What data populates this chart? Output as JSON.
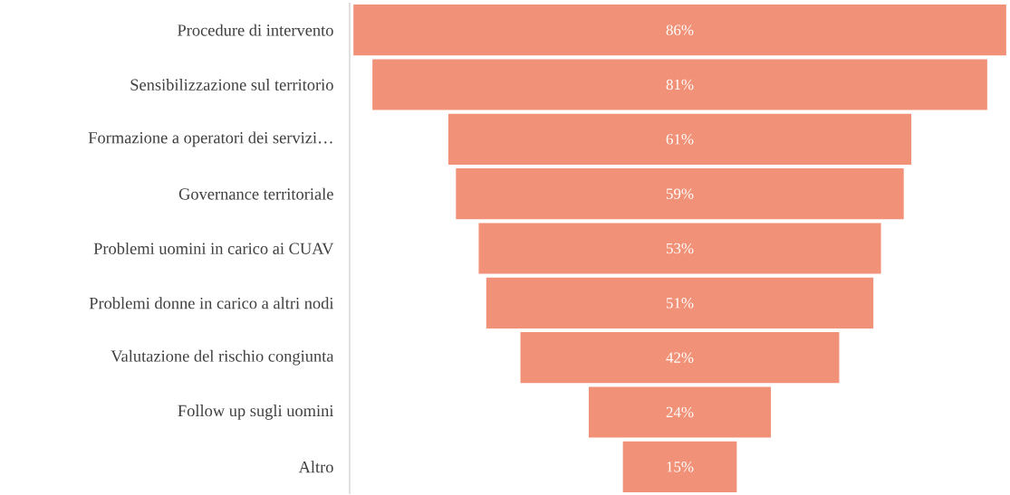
{
  "chart_data": {
    "type": "other",
    "categories": [
      "Procedure di intervento",
      "Sensibilizzazione sul territorio",
      "Formazione a operatori dei servizi…",
      "Governance territoriale",
      "Problemi uomini in carico ai CUAV",
      "Problemi donne in carico a altri nodi",
      "Valutazione del rischio congiunta",
      "Follow up sugli uomini",
      "Altro"
    ],
    "values": [
      86,
      81,
      61,
      59,
      53,
      51,
      42,
      24,
      15
    ],
    "value_labels": [
      "86%",
      "81%",
      "61%",
      "59%",
      "53%",
      "51%",
      "42%",
      "24%",
      "15%"
    ],
    "color": "#f19177"
  }
}
